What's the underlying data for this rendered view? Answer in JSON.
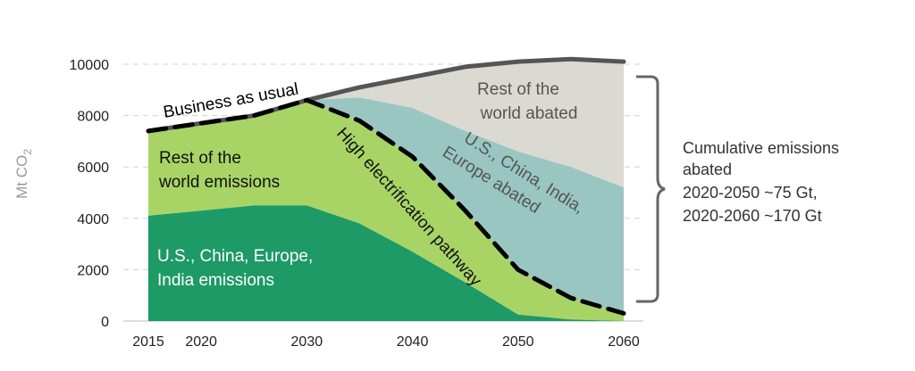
{
  "chart_data": {
    "type": "area",
    "ylabel_main": "Mt CO",
    "ylabel_sub": "2",
    "xlabel": "",
    "xlim": [
      2015,
      2060
    ],
    "ylim": [
      0,
      10000
    ],
    "x_ticks": [
      2015,
      2020,
      2030,
      2040,
      2050,
      2060
    ],
    "y_ticks": [
      0,
      2000,
      4000,
      6000,
      8000,
      10000
    ],
    "grid": true,
    "series": [
      {
        "name": "U.S., China, Europe, India emissions",
        "color": "#1d9a66",
        "points": [
          [
            2015,
            4100
          ],
          [
            2020,
            4300
          ],
          [
            2025,
            4500
          ],
          [
            2030,
            4500
          ],
          [
            2035,
            3800
          ],
          [
            2040,
            2700
          ],
          [
            2045,
            1500
          ],
          [
            2050,
            250
          ],
          [
            2055,
            60
          ],
          [
            2060,
            0
          ]
        ]
      },
      {
        "name": "Rest of the world emissions",
        "color": "#a8d466",
        "points": [
          [
            2015,
            7400
          ],
          [
            2020,
            7700
          ],
          [
            2025,
            8000
          ],
          [
            2030,
            8600
          ],
          [
            2035,
            7800
          ],
          [
            2040,
            6400
          ],
          [
            2045,
            4300
          ],
          [
            2050,
            2000
          ],
          [
            2055,
            900
          ],
          [
            2060,
            300
          ]
        ]
      },
      {
        "name": "U.S., China, India, Europe abated",
        "color": "#9ac6c2",
        "points": [
          [
            2030,
            8600
          ],
          [
            2035,
            8700
          ],
          [
            2040,
            8300
          ],
          [
            2045,
            7400
          ],
          [
            2050,
            6600
          ],
          [
            2055,
            6000
          ],
          [
            2060,
            5200
          ]
        ]
      },
      {
        "name": "Rest of the world abated",
        "color": "#dadad2",
        "points": [
          [
            2030,
            8600
          ],
          [
            2035,
            9100
          ],
          [
            2040,
            9500
          ],
          [
            2045,
            9900
          ],
          [
            2050,
            10100
          ],
          [
            2055,
            10200
          ],
          [
            2060,
            10100
          ]
        ]
      }
    ],
    "lines": [
      {
        "name": "Business as usual",
        "style": "solid",
        "color": "#555555",
        "points": [
          [
            2015,
            7400
          ],
          [
            2020,
            7700
          ],
          [
            2025,
            8000
          ],
          [
            2030,
            8600
          ],
          [
            2035,
            9100
          ],
          [
            2040,
            9500
          ],
          [
            2045,
            9900
          ],
          [
            2050,
            10100
          ],
          [
            2055,
            10200
          ],
          [
            2060,
            10100
          ]
        ]
      },
      {
        "name": "High electrification pathway",
        "style": "dashed",
        "color": "#000000",
        "points": [
          [
            2015,
            7400
          ],
          [
            2020,
            7700
          ],
          [
            2025,
            8000
          ],
          [
            2030,
            8600
          ],
          [
            2035,
            7800
          ],
          [
            2040,
            6400
          ],
          [
            2045,
            4300
          ],
          [
            2050,
            2000
          ],
          [
            2055,
            900
          ],
          [
            2060,
            300
          ]
        ]
      }
    ],
    "labels": {
      "rest_abated_1": "Rest of the",
      "rest_abated_2": "world abated",
      "major_abated_1": "U.S., China, India,",
      "major_abated_2": "Europe abated",
      "rest_emissions_1": "Rest of the",
      "rest_emissions_2": "world emissions",
      "major_emissions_1": "U.S., China, Europe,",
      "major_emissions_2": "India emissions",
      "bau": "Business as usual",
      "high_elec": "High electrification pathway"
    },
    "annotation": {
      "lines": [
        "Cumulative emissions",
        "abated",
        "2020-2050 ~75 Gt,",
        "2020-2060 ~170 Gt"
      ]
    }
  }
}
